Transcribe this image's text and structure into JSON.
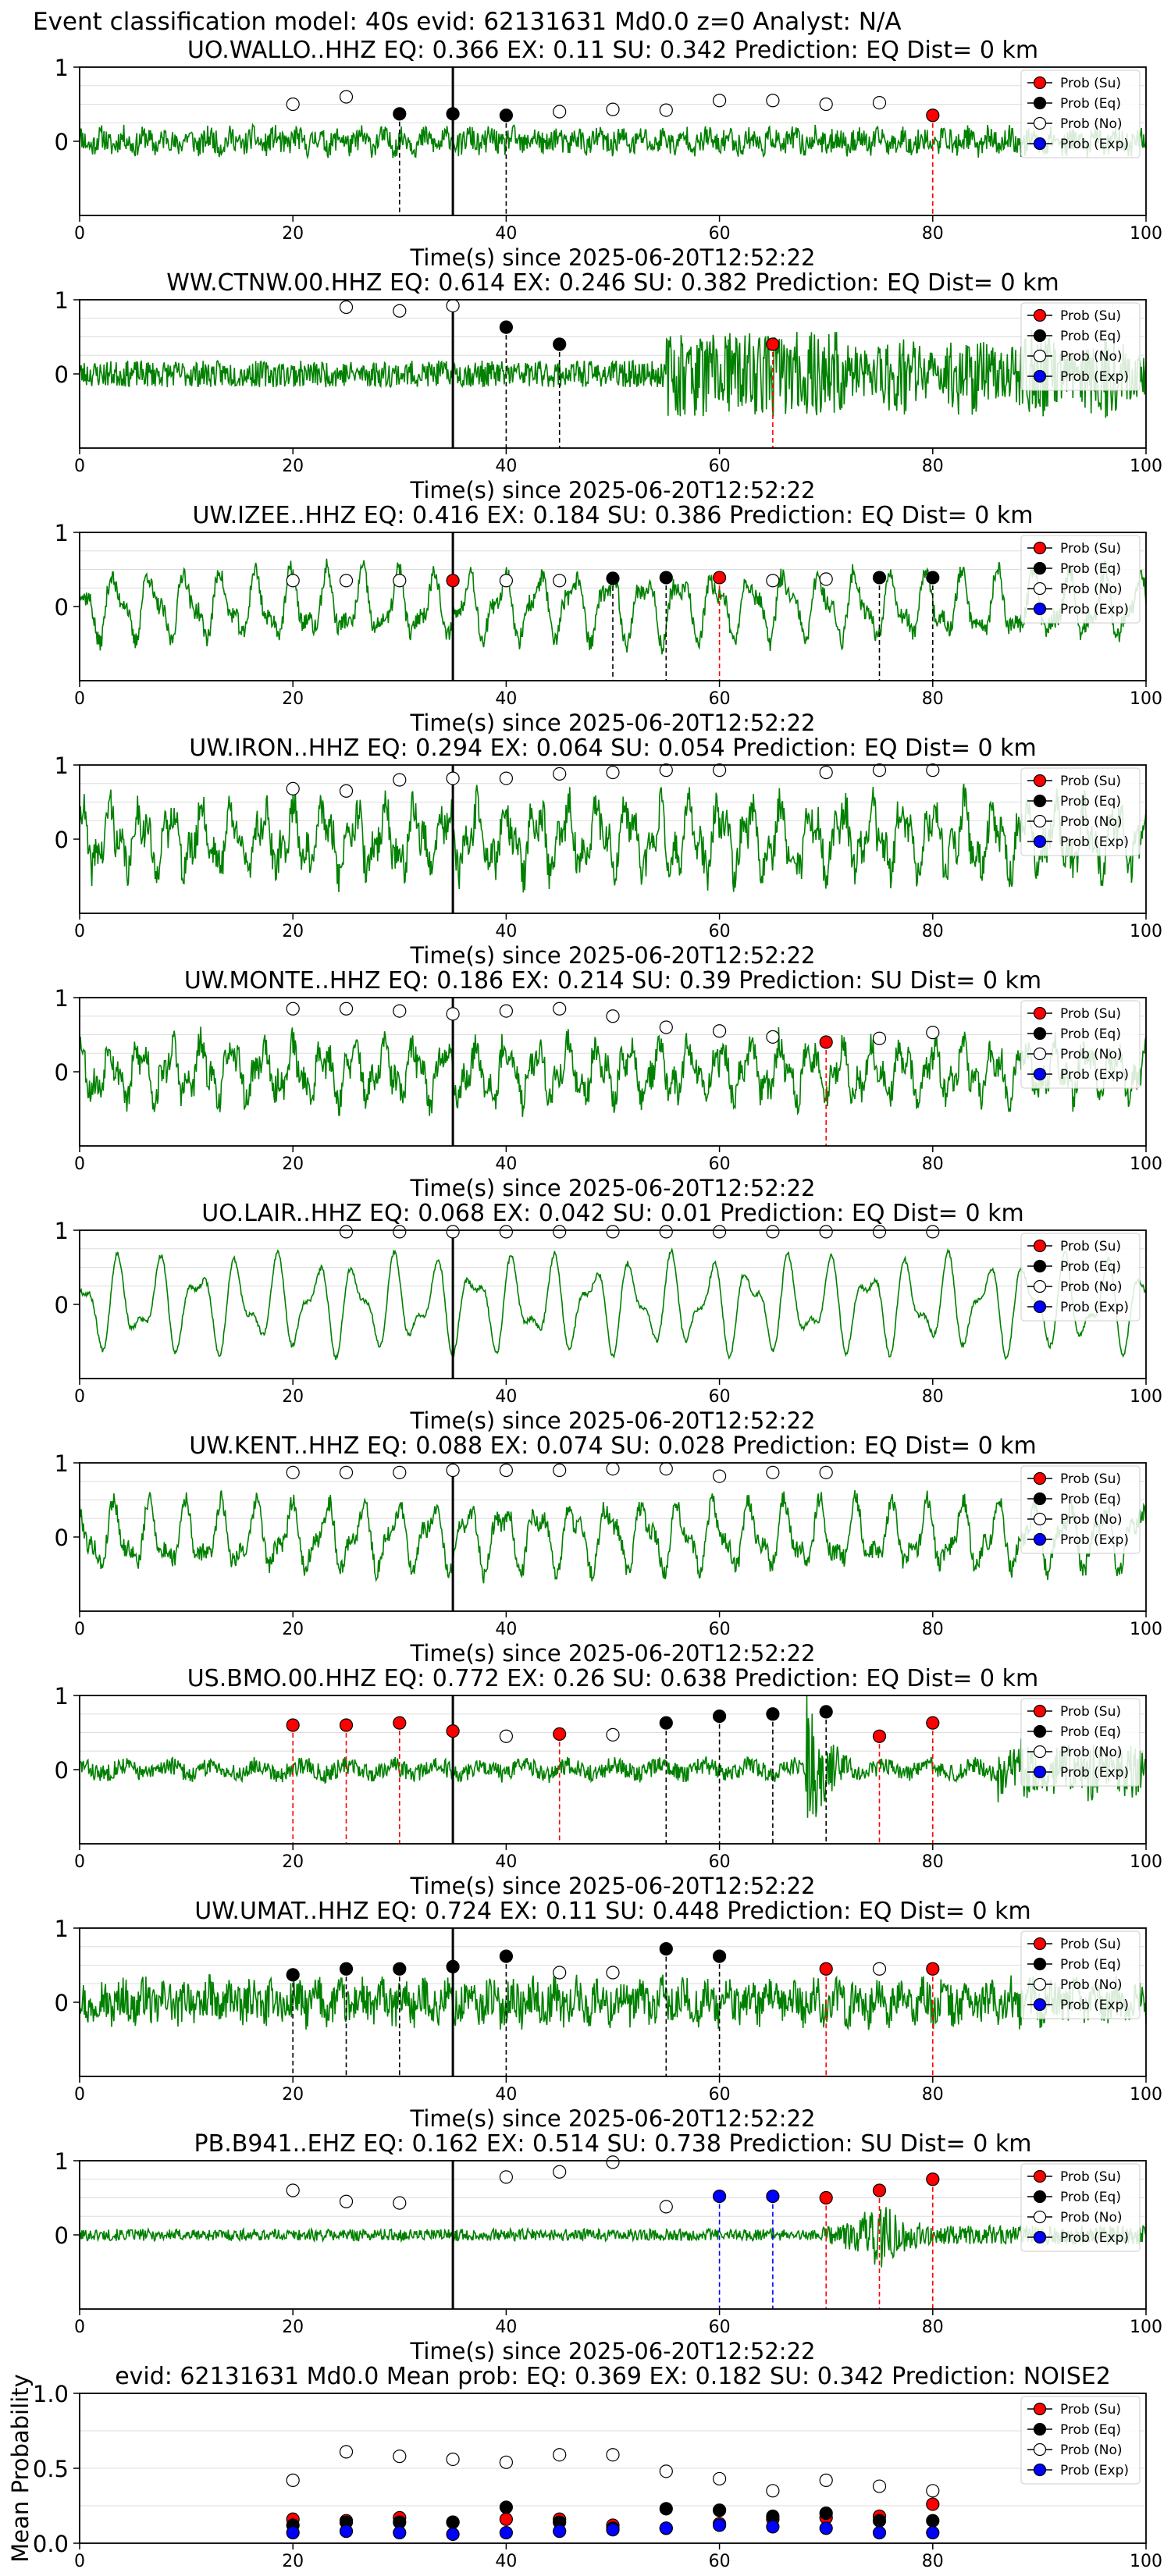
{
  "figure": {
    "suptitle": "Event classification model: 40s evid: 62131631 Md0.0 z=0 Analyst: N/A"
  },
  "colors": {
    "waveform": "#008000",
    "su": "#ff0000",
    "eq": "#000000",
    "no": "#ffffff",
    "exp": "#0000ff",
    "pick": "#000000"
  },
  "legend": [
    "Prob (Su)",
    "Prob (Eq)",
    "Prob (No)",
    "Prob (Exp)"
  ],
  "chart_data": [
    {
      "type": "line",
      "title": "UO.WALLO..HHZ   EQ: 0.366  EX: 0.11  SU: 0.342   Prediction: EQ    Dist= 0 km",
      "xlabel": "Time(s) since 2025-06-20T12:52:22",
      "ylabel": "",
      "xlim": [
        0,
        100
      ],
      "ylim": [
        -1,
        1
      ],
      "xticks": [
        0,
        20,
        40,
        60,
        80,
        100
      ],
      "yticks": [
        0,
        1
      ],
      "grid": "horizontal",
      "legend_position": "upper right",
      "pick_time": 35,
      "waveform": {
        "style": "noise",
        "amp": 0.18,
        "seed": 11
      },
      "windows": [
        {
          "t": 20,
          "label": "No",
          "prob": 0.5
        },
        {
          "t": 25,
          "label": "No",
          "prob": 0.6
        },
        {
          "t": 30,
          "label": "Eq",
          "prob": 0.37
        },
        {
          "t": 35,
          "label": "Eq",
          "prob": 0.37
        },
        {
          "t": 40,
          "label": "Eq",
          "prob": 0.35
        },
        {
          "t": 45,
          "label": "No",
          "prob": 0.4
        },
        {
          "t": 50,
          "label": "No",
          "prob": 0.43
        },
        {
          "t": 55,
          "label": "No",
          "prob": 0.42
        },
        {
          "t": 60,
          "label": "No",
          "prob": 0.55
        },
        {
          "t": 65,
          "label": "No",
          "prob": 0.55
        },
        {
          "t": 70,
          "label": "No",
          "prob": 0.5
        },
        {
          "t": 75,
          "label": "No",
          "prob": 0.52
        },
        {
          "t": 80,
          "label": "Su",
          "prob": 0.35
        }
      ]
    },
    {
      "type": "line",
      "title": "WW.CTNW.00.HHZ   EQ: 0.614  EX: 0.246  SU: 0.382   Prediction: EQ    Dist= 0 km",
      "xlabel": "Time(s) since 2025-06-20T12:52:22",
      "ylabel": "",
      "xlim": [
        0,
        100
      ],
      "ylim": [
        -1,
        1
      ],
      "xticks": [
        0,
        20,
        40,
        60,
        80,
        100
      ],
      "yticks": [
        0,
        1
      ],
      "grid": "horizontal",
      "legend_position": "upper right",
      "pick_time": 35,
      "waveform": {
        "style": "burst",
        "amp": 0.18,
        "seed": 23
      },
      "windows": [
        {
          "t": 25,
          "label": "No",
          "prob": 0.9
        },
        {
          "t": 30,
          "label": "No",
          "prob": 0.85
        },
        {
          "t": 35,
          "label": "No",
          "prob": 0.92
        },
        {
          "t": 40,
          "label": "Eq",
          "prob": 0.63
        },
        {
          "t": 45,
          "label": "Eq",
          "prob": 0.4
        },
        {
          "t": 65,
          "label": "Su",
          "prob": 0.4
        }
      ]
    },
    {
      "type": "line",
      "title": "UW.IZEE..HHZ   EQ: 0.416  EX: 0.184  SU: 0.386   Prediction: EQ    Dist= 0 km",
      "xlabel": "Time(s) since 2025-06-20T12:52:22",
      "ylabel": "",
      "xlim": [
        0,
        100
      ],
      "ylim": [
        -1,
        1
      ],
      "xticks": [
        0,
        20,
        40,
        60,
        80,
        100
      ],
      "yticks": [
        0,
        1
      ],
      "grid": "horizontal",
      "legend_position": "upper right",
      "pick_time": 35,
      "waveform": {
        "style": "wave",
        "amp": 0.5,
        "seed": 37
      },
      "windows": [
        {
          "t": 20,
          "label": "No",
          "prob": 0.35
        },
        {
          "t": 25,
          "label": "No",
          "prob": 0.35
        },
        {
          "t": 30,
          "label": "No",
          "prob": 0.35
        },
        {
          "t": 35,
          "label": "Su",
          "prob": 0.35
        },
        {
          "t": 40,
          "label": "No",
          "prob": 0.35
        },
        {
          "t": 45,
          "label": "No",
          "prob": 0.35
        },
        {
          "t": 50,
          "label": "Eq",
          "prob": 0.38
        },
        {
          "t": 55,
          "label": "Eq",
          "prob": 0.39
        },
        {
          "t": 60,
          "label": "Su",
          "prob": 0.39
        },
        {
          "t": 65,
          "label": "No",
          "prob": 0.35
        },
        {
          "t": 70,
          "label": "No",
          "prob": 0.37
        },
        {
          "t": 75,
          "label": "Eq",
          "prob": 0.39
        },
        {
          "t": 80,
          "label": "Eq",
          "prob": 0.39
        }
      ]
    },
    {
      "type": "line",
      "title": "UW.IRON..HHZ   EQ: 0.294  EX: 0.064  SU: 0.054   Prediction: EQ    Dist= 0 km",
      "xlabel": "Time(s) since 2025-06-20T12:52:22",
      "ylabel": "",
      "xlim": [
        0,
        100
      ],
      "ylim": [
        -1,
        1
      ],
      "xticks": [
        0,
        20,
        40,
        60,
        80,
        100
      ],
      "yticks": [
        0,
        1
      ],
      "grid": "horizontal",
      "legend_position": "upper right",
      "pick_time": 35,
      "waveform": {
        "style": "wave_noisy",
        "amp": 0.55,
        "seed": 41
      },
      "windows": [
        {
          "t": 20,
          "label": "No",
          "prob": 0.68
        },
        {
          "t": 25,
          "label": "No",
          "prob": 0.65
        },
        {
          "t": 30,
          "label": "No",
          "prob": 0.8
        },
        {
          "t": 35,
          "label": "No",
          "prob": 0.82
        },
        {
          "t": 40,
          "label": "No",
          "prob": 0.82
        },
        {
          "t": 45,
          "label": "No",
          "prob": 0.88
        },
        {
          "t": 50,
          "label": "No",
          "prob": 0.9
        },
        {
          "t": 55,
          "label": "No",
          "prob": 0.93
        },
        {
          "t": 60,
          "label": "No",
          "prob": 0.93
        },
        {
          "t": 70,
          "label": "No",
          "prob": 0.9
        },
        {
          "t": 75,
          "label": "No",
          "prob": 0.93
        },
        {
          "t": 80,
          "label": "No",
          "prob": 0.93
        }
      ]
    },
    {
      "type": "line",
      "title": "UW.MONTE..HHZ   EQ: 0.186  EX: 0.214  SU: 0.39   Prediction: SU    Dist= 0 km",
      "xlabel": "Time(s) since 2025-06-20T12:52:22",
      "ylabel": "",
      "xlim": [
        0,
        100
      ],
      "ylim": [
        -1,
        1
      ],
      "xticks": [
        0,
        20,
        40,
        60,
        80,
        100
      ],
      "yticks": [
        0,
        1
      ],
      "grid": "horizontal",
      "legend_position": "upper right",
      "pick_time": 35,
      "waveform": {
        "style": "wave_noisy",
        "amp": 0.45,
        "seed": 53
      },
      "windows": [
        {
          "t": 20,
          "label": "No",
          "prob": 0.85
        },
        {
          "t": 25,
          "label": "No",
          "prob": 0.85
        },
        {
          "t": 30,
          "label": "No",
          "prob": 0.82
        },
        {
          "t": 35,
          "label": "No",
          "prob": 0.78
        },
        {
          "t": 40,
          "label": "No",
          "prob": 0.82
        },
        {
          "t": 45,
          "label": "No",
          "prob": 0.85
        },
        {
          "t": 50,
          "label": "No",
          "prob": 0.75
        },
        {
          "t": 55,
          "label": "No",
          "prob": 0.6
        },
        {
          "t": 60,
          "label": "No",
          "prob": 0.55
        },
        {
          "t": 65,
          "label": "No",
          "prob": 0.47
        },
        {
          "t": 70,
          "label": "Su",
          "prob": 0.4
        },
        {
          "t": 75,
          "label": "No",
          "prob": 0.45
        },
        {
          "t": 80,
          "label": "No",
          "prob": 0.53
        }
      ]
    },
    {
      "type": "line",
      "title": "UO.LAIR..HHZ   EQ: 0.068  EX: 0.042  SU: 0.01   Prediction: EQ    Dist= 0 km",
      "xlabel": "Time(s) since 2025-06-20T12:52:22",
      "ylabel": "",
      "xlim": [
        0,
        100
      ],
      "ylim": [
        -1,
        1
      ],
      "xticks": [
        0,
        20,
        40,
        60,
        80,
        100
      ],
      "yticks": [
        0,
        1
      ],
      "grid": "horizontal",
      "legend_position": "upper right",
      "pick_time": 35,
      "waveform": {
        "style": "wave_smooth",
        "amp": 0.65,
        "seed": 67
      },
      "windows": [
        {
          "t": 25,
          "label": "No",
          "prob": 0.98
        },
        {
          "t": 30,
          "label": "No",
          "prob": 0.98
        },
        {
          "t": 35,
          "label": "No",
          "prob": 0.98
        },
        {
          "t": 40,
          "label": "No",
          "prob": 0.98
        },
        {
          "t": 45,
          "label": "No",
          "prob": 0.98
        },
        {
          "t": 50,
          "label": "No",
          "prob": 0.98
        },
        {
          "t": 55,
          "label": "No",
          "prob": 0.98
        },
        {
          "t": 60,
          "label": "No",
          "prob": 0.98
        },
        {
          "t": 65,
          "label": "No",
          "prob": 0.98
        },
        {
          "t": 70,
          "label": "No",
          "prob": 0.98
        },
        {
          "t": 75,
          "label": "No",
          "prob": 0.98
        },
        {
          "t": 80,
          "label": "No",
          "prob": 0.98
        }
      ]
    },
    {
      "type": "line",
      "title": "UW.KENT..HHZ   EQ: 0.088  EX: 0.074  SU: 0.028   Prediction: EQ    Dist= 0 km",
      "xlabel": "Time(s) since 2025-06-20T12:52:22",
      "ylabel": "",
      "xlim": [
        0,
        100
      ],
      "ylim": [
        -1,
        1
      ],
      "xticks": [
        0,
        20,
        40,
        60,
        80,
        100
      ],
      "yticks": [
        0,
        1
      ],
      "grid": "horizontal",
      "legend_position": "upper right",
      "pick_time": 35,
      "waveform": {
        "style": "wave",
        "amp": 0.5,
        "seed": 79
      },
      "windows": [
        {
          "t": 20,
          "label": "No",
          "prob": 0.87
        },
        {
          "t": 25,
          "label": "No",
          "prob": 0.87
        },
        {
          "t": 30,
          "label": "No",
          "prob": 0.87
        },
        {
          "t": 35,
          "label": "No",
          "prob": 0.9
        },
        {
          "t": 40,
          "label": "No",
          "prob": 0.9
        },
        {
          "t": 45,
          "label": "No",
          "prob": 0.9
        },
        {
          "t": 50,
          "label": "No",
          "prob": 0.92
        },
        {
          "t": 55,
          "label": "No",
          "prob": 0.92
        },
        {
          "t": 60,
          "label": "No",
          "prob": 0.82
        },
        {
          "t": 65,
          "label": "No",
          "prob": 0.87
        },
        {
          "t": 70,
          "label": "No",
          "prob": 0.87
        }
      ]
    },
    {
      "type": "line",
      "title": "US.BMO.00.HHZ   EQ: 0.772  EX: 0.26  SU: 0.638   Prediction: EQ    Dist= 0 km",
      "xlabel": "Time(s) since 2025-06-20T12:52:22",
      "ylabel": "",
      "xlim": [
        0,
        100
      ],
      "ylim": [
        -1,
        1
      ],
      "xticks": [
        0,
        20,
        40,
        60,
        80,
        100
      ],
      "yticks": [
        0,
        1
      ],
      "grid": "horizontal",
      "legend_position": "upper right",
      "pick_time": 35,
      "waveform": {
        "style": "burst_late",
        "amp": 0.15,
        "seed": 83
      },
      "windows": [
        {
          "t": 20,
          "label": "Su",
          "prob": 0.6
        },
        {
          "t": 25,
          "label": "Su",
          "prob": 0.6
        },
        {
          "t": 30,
          "label": "Su",
          "prob": 0.63
        },
        {
          "t": 35,
          "label": "Su",
          "prob": 0.52
        },
        {
          "t": 40,
          "label": "No",
          "prob": 0.45
        },
        {
          "t": 45,
          "label": "Su",
          "prob": 0.48
        },
        {
          "t": 50,
          "label": "No",
          "prob": 0.47
        },
        {
          "t": 55,
          "label": "Eq",
          "prob": 0.63
        },
        {
          "t": 60,
          "label": "Eq",
          "prob": 0.72
        },
        {
          "t": 65,
          "label": "Eq",
          "prob": 0.75
        },
        {
          "t": 70,
          "label": "Eq",
          "prob": 0.78
        },
        {
          "t": 75,
          "label": "Su",
          "prob": 0.45
        },
        {
          "t": 80,
          "label": "Su",
          "prob": 0.63
        }
      ]
    },
    {
      "type": "line",
      "title": "UW.UMAT..HHZ   EQ: 0.724  EX: 0.11  SU: 0.448   Prediction: EQ    Dist= 0 km",
      "xlabel": "Time(s) since 2025-06-20T12:52:22",
      "ylabel": "",
      "xlim": [
        0,
        100
      ],
      "ylim": [
        -1,
        1
      ],
      "xticks": [
        0,
        20,
        40,
        60,
        80,
        100
      ],
      "yticks": [
        0,
        1
      ],
      "grid": "horizontal",
      "legend_position": "upper right",
      "pick_time": 35,
      "waveform": {
        "style": "noise",
        "amp": 0.3,
        "seed": 97
      },
      "windows": [
        {
          "t": 20,
          "label": "Eq",
          "prob": 0.37
        },
        {
          "t": 25,
          "label": "Eq",
          "prob": 0.45
        },
        {
          "t": 30,
          "label": "Eq",
          "prob": 0.45
        },
        {
          "t": 35,
          "label": "Eq",
          "prob": 0.48
        },
        {
          "t": 40,
          "label": "Eq",
          "prob": 0.62
        },
        {
          "t": 45,
          "label": "No",
          "prob": 0.4
        },
        {
          "t": 50,
          "label": "No",
          "prob": 0.4
        },
        {
          "t": 55,
          "label": "Eq",
          "prob": 0.72
        },
        {
          "t": 60,
          "label": "Eq",
          "prob": 0.62
        },
        {
          "t": 70,
          "label": "Su",
          "prob": 0.45
        },
        {
          "t": 75,
          "label": "No",
          "prob": 0.45
        },
        {
          "t": 80,
          "label": "Su",
          "prob": 0.45
        }
      ]
    },
    {
      "type": "line",
      "title": "PB.B941..EHZ   EQ: 0.162  EX: 0.514  SU: 0.738   Prediction: SU    Dist= 0 km",
      "xlabel": "Time(s) since 2025-06-20T12:52:22",
      "ylabel": "",
      "xlim": [
        0,
        100
      ],
      "ylim": [
        -1,
        1
      ],
      "xticks": [
        0,
        20,
        40,
        60,
        80,
        100
      ],
      "yticks": [
        0,
        1
      ],
      "grid": "horizontal",
      "legend_position": "upper right",
      "pick_time": 35,
      "waveform": {
        "style": "burst_mid",
        "amp": 0.08,
        "seed": 101
      },
      "windows": [
        {
          "t": 20,
          "label": "No",
          "prob": 0.6
        },
        {
          "t": 25,
          "label": "No",
          "prob": 0.45
        },
        {
          "t": 30,
          "label": "No",
          "prob": 0.43
        },
        {
          "t": 40,
          "label": "No",
          "prob": 0.78
        },
        {
          "t": 45,
          "label": "No",
          "prob": 0.85
        },
        {
          "t": 50,
          "label": "No",
          "prob": 0.98
        },
        {
          "t": 55,
          "label": "No",
          "prob": 0.38
        },
        {
          "t": 60,
          "label": "Exp",
          "prob": 0.52
        },
        {
          "t": 65,
          "label": "Exp",
          "prob": 0.52
        },
        {
          "t": 70,
          "label": "Su",
          "prob": 0.5
        },
        {
          "t": 75,
          "label": "Su",
          "prob": 0.6
        },
        {
          "t": 80,
          "label": "Su",
          "prob": 0.75
        }
      ]
    },
    {
      "type": "scatter",
      "title": "evid: 62131631  Md0.0   Mean prob:   EQ: 0.369  EX: 0.182  SU: 0.342   Prediction: NOISE2",
      "xlabel": "",
      "ylabel": "Mean Probability",
      "xlim": [
        0,
        100
      ],
      "ylim": [
        0,
        1
      ],
      "xticks": [
        0,
        20,
        40,
        60,
        80,
        100
      ],
      "yticks": [
        0.0,
        0.5,
        1.0
      ],
      "ytick_labels": [
        "0.0",
        "0.5",
        "1.0"
      ],
      "grid": "horizontal",
      "legend_position": "upper right",
      "x": [
        20,
        25,
        30,
        35,
        40,
        45,
        50,
        55,
        60,
        65,
        70,
        75,
        80
      ],
      "series": [
        {
          "name": "Prob (Su)",
          "color": "#ff0000",
          "values": [
            0.16,
            0.15,
            0.17,
            0.14,
            0.16,
            0.16,
            0.12,
            0.1,
            0.13,
            0.16,
            0.17,
            0.18,
            0.26
          ]
        },
        {
          "name": "Prob (Eq)",
          "color": "#000000",
          "values": [
            0.12,
            0.14,
            0.14,
            0.14,
            0.24,
            0.14,
            0.1,
            0.23,
            0.22,
            0.18,
            0.2,
            0.15,
            0.15
          ]
        },
        {
          "name": "Prob (No)",
          "color": "#ffffff",
          "values": [
            0.42,
            0.61,
            0.58,
            0.56,
            0.54,
            0.59,
            0.59,
            0.48,
            0.43,
            0.35,
            0.42,
            0.38,
            0.35
          ]
        },
        {
          "name": "Prob (Exp)",
          "color": "#0000ff",
          "values": [
            0.07,
            0.08,
            0.07,
            0.06,
            0.07,
            0.08,
            0.09,
            0.1,
            0.12,
            0.11,
            0.1,
            0.07,
            0.07
          ]
        }
      ]
    }
  ]
}
